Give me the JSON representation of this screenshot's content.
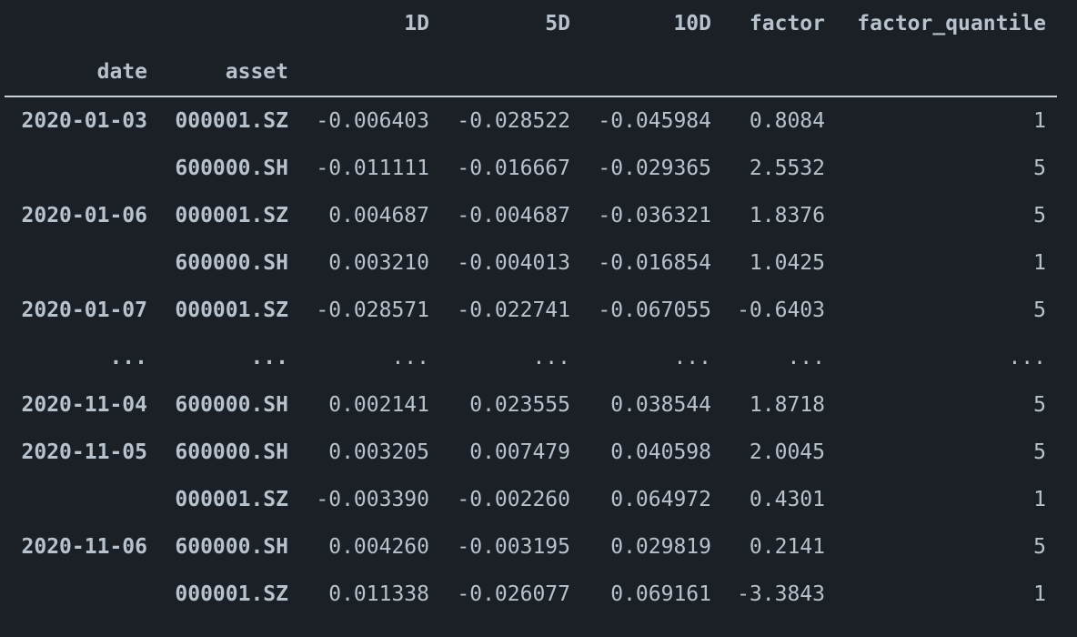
{
  "table": {
    "columns": [
      "1D",
      "5D",
      "10D",
      "factor",
      "factor_quantile"
    ],
    "index_names": [
      "date",
      "asset"
    ],
    "rows": [
      {
        "date": "2020-01-03",
        "asset": "000001.SZ",
        "values": [
          "-0.006403",
          "-0.028522",
          "-0.045984",
          "0.8084",
          "1"
        ]
      },
      {
        "date": "",
        "asset": "600000.SH",
        "values": [
          "-0.011111",
          "-0.016667",
          "-0.029365",
          "2.5532",
          "5"
        ]
      },
      {
        "date": "2020-01-06",
        "asset": "000001.SZ",
        "values": [
          "0.004687",
          "-0.004687",
          "-0.036321",
          "1.8376",
          "5"
        ]
      },
      {
        "date": "",
        "asset": "600000.SH",
        "values": [
          "0.003210",
          "-0.004013",
          "-0.016854",
          "1.0425",
          "1"
        ]
      },
      {
        "date": "2020-01-07",
        "asset": "000001.SZ",
        "values": [
          "-0.028571",
          "-0.022741",
          "-0.067055",
          "-0.6403",
          "5"
        ]
      },
      {
        "date": "...",
        "asset": "...",
        "values": [
          "...",
          "...",
          "...",
          "...",
          "..."
        ]
      },
      {
        "date": "2020-11-04",
        "asset": "600000.SH",
        "values": [
          "0.002141",
          "0.023555",
          "0.038544",
          "1.8718",
          "5"
        ]
      },
      {
        "date": "2020-11-05",
        "asset": "600000.SH",
        "values": [
          "0.003205",
          "0.007479",
          "0.040598",
          "2.0045",
          "5"
        ]
      },
      {
        "date": "",
        "asset": "000001.SZ",
        "values": [
          "-0.003390",
          "-0.002260",
          "0.064972",
          "0.4301",
          "1"
        ]
      },
      {
        "date": "2020-11-06",
        "asset": "600000.SH",
        "values": [
          "0.004260",
          "-0.003195",
          "0.029819",
          "0.2141",
          "5"
        ]
      },
      {
        "date": "",
        "asset": "000001.SZ",
        "values": [
          "0.011338",
          "-0.026077",
          "0.069161",
          "-3.3843",
          "1"
        ]
      }
    ]
  }
}
